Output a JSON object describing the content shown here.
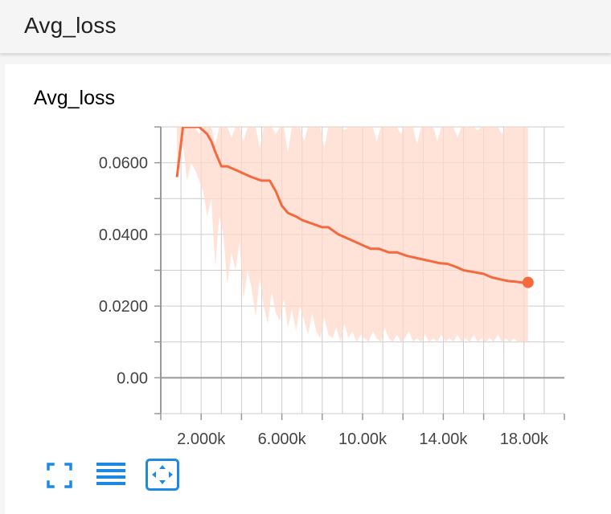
{
  "header": {
    "title": "Avg_loss"
  },
  "card": {
    "title": "Avg_loss"
  },
  "colors": {
    "line": "#f4693e",
    "band": "#ffd9cc",
    "icon": "#1e88e5",
    "grid": "#cccccc",
    "zero_line": "#999999"
  },
  "controls": {
    "expand_icon": "fullscreen-icon",
    "lines_icon": "toggle-lines-icon",
    "fit_icon": "fit-domain-icon"
  },
  "chart_data": {
    "type": "line",
    "x_ticks": [
      "2.000k",
      "6.000k",
      "10.00k",
      "14.00k",
      "18.00k"
    ],
    "x_tick_values": [
      2000,
      6000,
      10000,
      14000,
      18000
    ],
    "y_ticks": [
      "0.00",
      "0.0200",
      "0.0400",
      "0.0600"
    ],
    "y_tick_values": [
      0.0,
      0.02,
      0.04,
      0.06
    ],
    "xlim": [
      0,
      20000
    ],
    "ylim": [
      -0.01,
      0.07
    ],
    "grid": true,
    "series": [
      {
        "values_x": [
          800,
          1100,
          1500,
          1900,
          2300,
          2500,
          2700,
          3000,
          3300,
          3700,
          4100,
          4500,
          5000,
          5400,
          5700,
          6000,
          6300,
          6700,
          7000,
          7500,
          8000,
          8300,
          8800,
          9200,
          9600,
          10000,
          10400,
          10800,
          11300,
          11700,
          12200,
          12600,
          13000,
          13400,
          13800,
          14200,
          14600,
          15000,
          15500,
          16000,
          16400,
          16800,
          17200,
          17600,
          18000,
          18200
        ],
        "values_y": [
          0.056,
          0.07,
          0.07,
          0.07,
          0.068,
          0.066,
          0.063,
          0.059,
          0.059,
          0.058,
          0.057,
          0.056,
          0.055,
          0.055,
          0.052,
          0.048,
          0.046,
          0.045,
          0.044,
          0.043,
          0.042,
          0.042,
          0.04,
          0.039,
          0.038,
          0.037,
          0.036,
          0.036,
          0.035,
          0.035,
          0.034,
          0.0335,
          0.033,
          0.0325,
          0.032,
          0.0318,
          0.031,
          0.03,
          0.0295,
          0.029,
          0.028,
          0.0275,
          0.027,
          0.0268,
          0.0265,
          0.0266
        ],
        "band_x": [
          800,
          1100,
          1300,
          1500,
          1700,
          1900,
          2100,
          2300,
          2500,
          2700,
          2900,
          3100,
          3300,
          3500,
          3700,
          3900,
          4100,
          4300,
          4500,
          4700,
          4900,
          5100,
          5300,
          5500,
          5700,
          5900,
          6100,
          6300,
          6500,
          6700,
          6900,
          7100,
          7300,
          7500,
          7700,
          7900,
          8100,
          8300,
          8500,
          8700,
          8900,
          9100,
          9300,
          9500,
          9700,
          9900,
          10100,
          10300,
          10500,
          10700,
          10900,
          11100,
          11300,
          11500,
          11700,
          11900,
          12100,
          12300,
          12500,
          12700,
          12900,
          13100,
          13300,
          13500,
          13700,
          13900,
          14100,
          14300,
          14500,
          14700,
          14900,
          15100,
          15300,
          15500,
          15700,
          15900,
          16100,
          16300,
          16500,
          16700,
          16900,
          17100,
          17300,
          17500,
          17700,
          17900,
          18200
        ],
        "band_upper": [
          0.07,
          0.07,
          0.07,
          0.07,
          0.07,
          0.068,
          0.07,
          0.07,
          0.07,
          0.065,
          0.07,
          0.07,
          0.07,
          0.067,
          0.07,
          0.07,
          0.066,
          0.07,
          0.07,
          0.07,
          0.064,
          0.07,
          0.07,
          0.07,
          0.068,
          0.07,
          0.07,
          0.063,
          0.07,
          0.07,
          0.07,
          0.066,
          0.07,
          0.07,
          0.07,
          0.07,
          0.064,
          0.07,
          0.07,
          0.07,
          0.07,
          0.069,
          0.07,
          0.07,
          0.07,
          0.07,
          0.07,
          0.07,
          0.07,
          0.066,
          0.07,
          0.07,
          0.07,
          0.07,
          0.07,
          0.068,
          0.07,
          0.07,
          0.07,
          0.065,
          0.07,
          0.07,
          0.07,
          0.07,
          0.066,
          0.07,
          0.07,
          0.07,
          0.07,
          0.067,
          0.07,
          0.07,
          0.07,
          0.07,
          0.069,
          0.07,
          0.07,
          0.07,
          0.07,
          0.07,
          0.068,
          0.07,
          0.07,
          0.07,
          0.07,
          0.07,
          0.07
        ],
        "band_lower": [
          0.056,
          0.065,
          0.055,
          0.06,
          0.058,
          0.055,
          0.052,
          0.045,
          0.05,
          0.031,
          0.045,
          0.04,
          0.026,
          0.035,
          0.03,
          0.038,
          0.022,
          0.03,
          0.025,
          0.017,
          0.028,
          0.02,
          0.015,
          0.024,
          0.018,
          0.016,
          0.022,
          0.014,
          0.019,
          0.013,
          0.02,
          0.016,
          0.012,
          0.018,
          0.013,
          0.011,
          0.017,
          0.012,
          0.011,
          0.014,
          0.01,
          0.015,
          0.011,
          0.013,
          0.01,
          0.012,
          0.011,
          0.01,
          0.013,
          0.011,
          0.01,
          0.014,
          0.011,
          0.01,
          0.012,
          0.01,
          0.011,
          0.013,
          0.01,
          0.011,
          0.01,
          0.012,
          0.01,
          0.011,
          0.01,
          0.012,
          0.01,
          0.011,
          0.01,
          0.012,
          0.01,
          0.011,
          0.01,
          0.012,
          0.01,
          0.011,
          0.01,
          0.011,
          0.01,
          0.012,
          0.01,
          0.011,
          0.01,
          0.011,
          0.01,
          0.01,
          0.01
        ]
      }
    ]
  }
}
